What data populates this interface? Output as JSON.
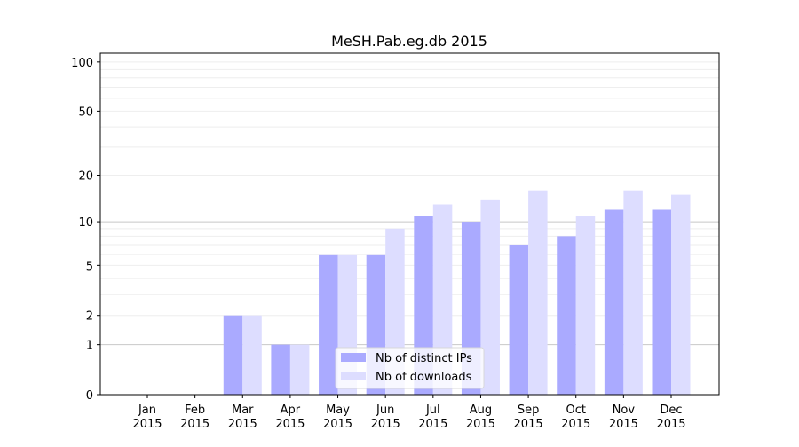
{
  "chart_data": {
    "type": "bar",
    "title": "MeSH.Pab.eg.db 2015",
    "xlabel": "",
    "ylabel": "",
    "y_scale": "log(1+y)",
    "ylim": [
      0,
      113
    ],
    "yticks": [
      0,
      1,
      2,
      5,
      10,
      20,
      50,
      100
    ],
    "grid": true,
    "legend_position": "bottom-center",
    "categories": [
      "Jan\n2015",
      "Feb\n2015",
      "Mar\n2015",
      "Apr\n2015",
      "May\n2015",
      "Jun\n2015",
      "Jul\n2015",
      "Aug\n2015",
      "Sep\n2015",
      "Oct\n2015",
      "Nov\n2015",
      "Dec\n2015"
    ],
    "series": [
      {
        "name": "Nb of distinct IPs",
        "color": "#aaaaff",
        "values": [
          0,
          0,
          2,
          1,
          6,
          6,
          11,
          10,
          7,
          8,
          12,
          12
        ]
      },
      {
        "name": "Nb of downloads",
        "color": "#ddddff",
        "values": [
          0,
          0,
          2,
          1,
          6,
          9,
          13,
          14,
          16,
          11,
          16,
          15
        ]
      }
    ]
  }
}
